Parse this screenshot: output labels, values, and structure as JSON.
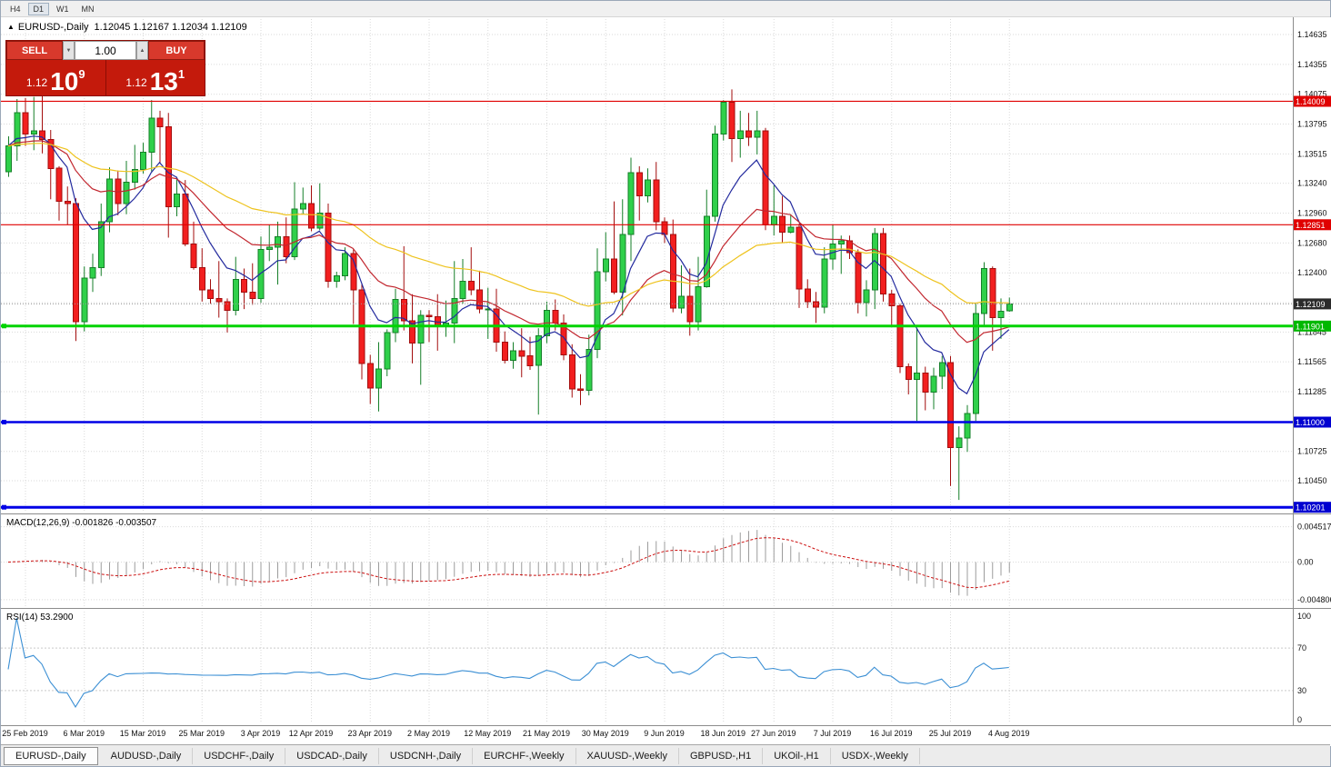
{
  "window": {
    "timeframes": [
      {
        "label": "H4",
        "active": false
      },
      {
        "label": "D1",
        "active": true
      },
      {
        "label": "W1",
        "active": false
      },
      {
        "label": "MN",
        "active": false
      }
    ]
  },
  "chart": {
    "symbol_title": "EURUSD-,Daily",
    "ohlc_line": "1.12045 1.12167 1.12034 1.12109",
    "collapse_glyph": "▲"
  },
  "trade_panel": {
    "sell_label": "SELL",
    "buy_label": "BUY",
    "lot": "1.00",
    "spin_down_glyph": "▼",
    "spin_up_glyph": "▲",
    "sell_price": {
      "prefix": "1.12",
      "big": "10",
      "sup": "9"
    },
    "buy_price": {
      "prefix": "1.12",
      "big": "13",
      "sup": "1"
    }
  },
  "price_axis": {
    "ticks": [
      "1.14635",
      "1.14355",
      "1.14075",
      "1.13795",
      "1.13515",
      "1.13240",
      "1.12960",
      "1.12680",
      "1.12400",
      "1.12120",
      "1.11845",
      "1.11565",
      "1.11285",
      "1.11005",
      "1.10725",
      "1.10450"
    ]
  },
  "levels": [
    {
      "value": 1.14009,
      "label": "1.14009",
      "color": "#e00000",
      "width": 1.2,
      "badge": "#e00000"
    },
    {
      "value": 1.12851,
      "label": "1.12851",
      "color": "#e00000",
      "width": 1.2,
      "badge": "#e00000"
    },
    {
      "value": 1.12109,
      "label": "1.12109",
      "style": "current",
      "color": "#9a9a9a",
      "badge": "#2b2b2b"
    },
    {
      "value": 1.11901,
      "label": "1.11901",
      "color": "#00d400",
      "width": 3,
      "badge": "#00b800"
    },
    {
      "value": 1.11,
      "label": "1.11000",
      "color": "#0000e6",
      "width": 2.5,
      "badge": "#0000d0"
    },
    {
      "value": 1.10201,
      "label": "1.10201",
      "color": "#0000e6",
      "width": 3,
      "badge": "#0000d0"
    }
  ],
  "x_axis": {
    "ticks": [
      {
        "i": 2,
        "label": "25 Feb 2019"
      },
      {
        "i": 9,
        "label": "6 Mar 2019"
      },
      {
        "i": 16,
        "label": "15 Mar 2019"
      },
      {
        "i": 23,
        "label": "25 Mar 2019"
      },
      {
        "i": 30,
        "label": "3 Apr 2019"
      },
      {
        "i": 36,
        "label": "12 Apr 2019"
      },
      {
        "i": 43,
        "label": "23 Apr 2019"
      },
      {
        "i": 50,
        "label": "2 May 2019"
      },
      {
        "i": 57,
        "label": "12 May 2019"
      },
      {
        "i": 64,
        "label": "21 May 2019"
      },
      {
        "i": 71,
        "label": "30 May 2019"
      },
      {
        "i": 78,
        "label": "9 Jun 2019"
      },
      {
        "i": 85,
        "label": "18 Jun 2019"
      },
      {
        "i": 91,
        "label": "27 Jun 2019"
      },
      {
        "i": 98,
        "label": "7 Jul 2019"
      },
      {
        "i": 105,
        "label": "16 Jul 2019"
      },
      {
        "i": 112,
        "label": "25 Jul 2019"
      },
      {
        "i": 119,
        "label": "4 Aug 2019"
      }
    ]
  },
  "macd_panel": {
    "label": "MACD(12,26,9)",
    "values_text": "-0.001826 -0.003507",
    "axis": [
      "0.004517",
      "0.00",
      "-0.004806"
    ]
  },
  "rsi_panel": {
    "label": "RSI(14)",
    "value_text": "53.2900",
    "axis": [
      "100",
      "70",
      "30",
      "0"
    ],
    "levels": [
      70,
      30
    ]
  },
  "tabs": [
    {
      "label": "EURUSD-,Daily",
      "active": true
    },
    {
      "label": "AUDUSD-,Daily",
      "active": false
    },
    {
      "label": "USDCHF-,Daily",
      "active": false
    },
    {
      "label": "USDCAD-,Daily",
      "active": false
    },
    {
      "label": "USDCNH-,Daily",
      "active": false
    },
    {
      "label": "EURCHF-,Weekly",
      "active": false
    },
    {
      "label": "XAUUSD-,Weekly",
      "active": false
    },
    {
      "label": "GBPUSD-,H1",
      "active": false
    },
    {
      "label": "UKOil-,H1",
      "active": false
    },
    {
      "label": "USDX-,Weekly",
      "active": false
    }
  ],
  "colors": {
    "bull": "#2fd04a",
    "bull_edge": "#157f28",
    "bear": "#f21f1f",
    "bear_edge": "#a30d0d",
    "grid": "#dadada",
    "macd_hist": "#9c9c9c",
    "macd_signal": "#cc1111",
    "rsi": "#3b8fd4",
    "axis_text": "#111111",
    "badge_text": "#ffffff"
  },
  "chart_data": {
    "type": "candlestick",
    "symbol": "EURUSD-",
    "timeframe": "Daily",
    "current": {
      "open": 1.12045,
      "high": 1.12167,
      "low": 1.12034,
      "close": 1.12109
    },
    "horizontal_levels": [
      1.14009,
      1.12851,
      1.11901,
      1.11,
      1.10201
    ],
    "moving_averages": [
      {
        "period": 8,
        "color": "#232a9e"
      },
      {
        "period": 20,
        "color": "#c2272f"
      },
      {
        "period": 45,
        "color": "#eec31e"
      }
    ],
    "macd": {
      "fast": 12,
      "slow": 26,
      "signal": 9
    },
    "rsi_period": 14,
    "candles": [
      [
        1.1335,
        1.1368,
        1.133,
        1.1359
      ],
      [
        1.1359,
        1.1403,
        1.1345,
        1.139
      ],
      [
        1.139,
        1.1404,
        1.1359,
        1.137
      ],
      [
        1.137,
        1.1405,
        1.1355,
        1.1373
      ],
      [
        1.1373,
        1.1409,
        1.1352,
        1.1365
      ],
      [
        1.1365,
        1.1374,
        1.1309,
        1.1338
      ],
      [
        1.1338,
        1.134,
        1.1289,
        1.1307
      ],
      [
        1.1307,
        1.1321,
        1.1285,
        1.1305
      ],
      [
        1.1305,
        1.131,
        1.1176,
        1.1194
      ],
      [
        1.1194,
        1.1246,
        1.1185,
        1.1235
      ],
      [
        1.1235,
        1.1258,
        1.1222,
        1.1245
      ],
      [
        1.1245,
        1.1305,
        1.1237,
        1.1288
      ],
      [
        1.1288,
        1.1339,
        1.1278,
        1.1328
      ],
      [
        1.1328,
        1.1336,
        1.1294,
        1.1305
      ],
      [
        1.1305,
        1.1345,
        1.1295,
        1.1325
      ],
      [
        1.1325,
        1.136,
        1.1318,
        1.1337
      ],
      [
        1.1337,
        1.1362,
        1.1333,
        1.1353
      ],
      [
        1.1353,
        1.1402,
        1.1335,
        1.1385
      ],
      [
        1.1385,
        1.1392,
        1.1343,
        1.1377
      ],
      [
        1.1377,
        1.139,
        1.1273,
        1.1302
      ],
      [
        1.1302,
        1.133,
        1.1293,
        1.1314
      ],
      [
        1.1314,
        1.1327,
        1.1265,
        1.1267
      ],
      [
        1.1267,
        1.1288,
        1.1243,
        1.1245
      ],
      [
        1.1245,
        1.1263,
        1.1213,
        1.1224
      ],
      [
        1.1224,
        1.1234,
        1.1211,
        1.1216
      ],
      [
        1.1216,
        1.1251,
        1.1198,
        1.1213
      ],
      [
        1.1213,
        1.1216,
        1.1184,
        1.1205
      ],
      [
        1.1205,
        1.1255,
        1.12,
        1.1234
      ],
      [
        1.1234,
        1.1244,
        1.1206,
        1.1222
      ],
      [
        1.1222,
        1.1249,
        1.121,
        1.1216
      ],
      [
        1.1216,
        1.1274,
        1.1212,
        1.1262
      ],
      [
        1.1262,
        1.1285,
        1.1251,
        1.1264
      ],
      [
        1.1264,
        1.1288,
        1.1229,
        1.1274
      ],
      [
        1.1274,
        1.1292,
        1.1249,
        1.1255
      ],
      [
        1.1255,
        1.1325,
        1.1252,
        1.13
      ],
      [
        1.13,
        1.132,
        1.1295,
        1.1305
      ],
      [
        1.1305,
        1.1322,
        1.1279,
        1.1282
      ],
      [
        1.1282,
        1.1324,
        1.128,
        1.1296
      ],
      [
        1.1296,
        1.1305,
        1.1226,
        1.1232
      ],
      [
        1.1232,
        1.1241,
        1.1226,
        1.1237
      ],
      [
        1.1237,
        1.1264,
        1.1233,
        1.1258
      ],
      [
        1.1258,
        1.1262,
        1.1192,
        1.1224
      ],
      [
        1.1224,
        1.123,
        1.114,
        1.1155
      ],
      [
        1.1155,
        1.1163,
        1.1117,
        1.1132
      ],
      [
        1.1132,
        1.1175,
        1.111,
        1.115
      ],
      [
        1.115,
        1.1187,
        1.1143,
        1.1184
      ],
      [
        1.1184,
        1.1225,
        1.1175,
        1.1215
      ],
      [
        1.1215,
        1.1265,
        1.1186,
        1.1195
      ],
      [
        1.1195,
        1.122,
        1.1155,
        1.1174
      ],
      [
        1.1174,
        1.1205,
        1.1135,
        1.12
      ],
      [
        1.12,
        1.1205,
        1.1175,
        1.1199
      ],
      [
        1.1199,
        1.122,
        1.1167,
        1.119
      ],
      [
        1.119,
        1.1214,
        1.118,
        1.1193
      ],
      [
        1.1193,
        1.1251,
        1.1174,
        1.1216
      ],
      [
        1.1216,
        1.1253,
        1.1211,
        1.1232
      ],
      [
        1.1232,
        1.1264,
        1.1219,
        1.1224
      ],
      [
        1.1224,
        1.1242,
        1.1202,
        1.1206
      ],
      [
        1.1206,
        1.1226,
        1.1178,
        1.1206
      ],
      [
        1.1206,
        1.1225,
        1.1166,
        1.1175
      ],
      [
        1.1175,
        1.1185,
        1.1155,
        1.1158
      ],
      [
        1.1158,
        1.1175,
        1.115,
        1.1167
      ],
      [
        1.1167,
        1.1188,
        1.1142,
        1.1162
      ],
      [
        1.1162,
        1.118,
        1.1149,
        1.1153
      ],
      [
        1.1153,
        1.1188,
        1.1107,
        1.1181
      ],
      [
        1.1181,
        1.1213,
        1.1174,
        1.1205
      ],
      [
        1.1205,
        1.1215,
        1.1186,
        1.1193
      ],
      [
        1.1193,
        1.1201,
        1.1158,
        1.1163
      ],
      [
        1.1163,
        1.1173,
        1.1123,
        1.1131
      ],
      [
        1.1131,
        1.1145,
        1.1116,
        1.113
      ],
      [
        1.113,
        1.1182,
        1.1125,
        1.1168
      ],
      [
        1.1168,
        1.1263,
        1.116,
        1.1241
      ],
      [
        1.1241,
        1.1278,
        1.1232,
        1.1253
      ],
      [
        1.1253,
        1.1307,
        1.122,
        1.1222
      ],
      [
        1.1222,
        1.1309,
        1.12,
        1.1276
      ],
      [
        1.1276,
        1.1348,
        1.1251,
        1.1334
      ],
      [
        1.1334,
        1.134,
        1.1289,
        1.1312
      ],
      [
        1.1312,
        1.1338,
        1.1306,
        1.1327
      ],
      [
        1.1327,
        1.1344,
        1.128,
        1.1288
      ],
      [
        1.1288,
        1.1292,
        1.1268,
        1.1276
      ],
      [
        1.1276,
        1.129,
        1.1203,
        1.1207
      ],
      [
        1.1207,
        1.1247,
        1.1202,
        1.1218
      ],
      [
        1.1218,
        1.1244,
        1.1181,
        1.1194
      ],
      [
        1.1194,
        1.1255,
        1.1186,
        1.1227
      ],
      [
        1.1227,
        1.1318,
        1.1226,
        1.1293
      ],
      [
        1.1293,
        1.1378,
        1.1288,
        1.137
      ],
      [
        1.137,
        1.1402,
        1.1364,
        1.14
      ],
      [
        1.14,
        1.1412,
        1.1344,
        1.1366
      ],
      [
        1.1366,
        1.1392,
        1.1348,
        1.1373
      ],
      [
        1.1373,
        1.139,
        1.1359,
        1.1367
      ],
      [
        1.1367,
        1.1392,
        1.1351,
        1.1373
      ],
      [
        1.1373,
        1.1376,
        1.128,
        1.1285
      ],
      [
        1.1285,
        1.1322,
        1.1275,
        1.1293
      ],
      [
        1.1293,
        1.1312,
        1.1268,
        1.1278
      ],
      [
        1.1278,
        1.1295,
        1.1277,
        1.1283
      ],
      [
        1.1283,
        1.1286,
        1.1207,
        1.1225
      ],
      [
        1.1225,
        1.1234,
        1.1207,
        1.1213
      ],
      [
        1.1213,
        1.1222,
        1.1193,
        1.1208
      ],
      [
        1.1208,
        1.1264,
        1.1202,
        1.1253
      ],
      [
        1.1253,
        1.1285,
        1.1243,
        1.1267
      ],
      [
        1.1267,
        1.1275,
        1.1239,
        1.127
      ],
      [
        1.127,
        1.1275,
        1.1253,
        1.1259
      ],
      [
        1.1259,
        1.1262,
        1.1202,
        1.1212
      ],
      [
        1.1212,
        1.1233,
        1.1199,
        1.1224
      ],
      [
        1.1224,
        1.1282,
        1.1206,
        1.1277
      ],
      [
        1.1277,
        1.1282,
        1.1213,
        1.122
      ],
      [
        1.122,
        1.1224,
        1.119,
        1.1209
      ],
      [
        1.1209,
        1.1211,
        1.1146,
        1.1152
      ],
      [
        1.1152,
        1.1155,
        1.1126,
        1.114
      ],
      [
        1.114,
        1.1188,
        1.1101,
        1.1146
      ],
      [
        1.1146,
        1.1152,
        1.1111,
        1.1128
      ],
      [
        1.1128,
        1.1151,
        1.1112,
        1.1143
      ],
      [
        1.1143,
        1.1162,
        1.1131,
        1.1156
      ],
      [
        1.1156,
        1.1162,
        1.104,
        1.1076
      ],
      [
        1.1076,
        1.1096,
        1.1027,
        1.1085
      ],
      [
        1.1085,
        1.1116,
        1.1072,
        1.1108
      ],
      [
        1.1108,
        1.1211,
        1.1101,
        1.1202
      ],
      [
        1.1202,
        1.125,
        1.119,
        1.1244
      ],
      [
        1.1244,
        1.1246,
        1.1167,
        1.1198
      ],
      [
        1.1198,
        1.1216,
        1.1178,
        1.1204
      ],
      [
        1.12045,
        1.12167,
        1.12034,
        1.12109
      ]
    ]
  }
}
